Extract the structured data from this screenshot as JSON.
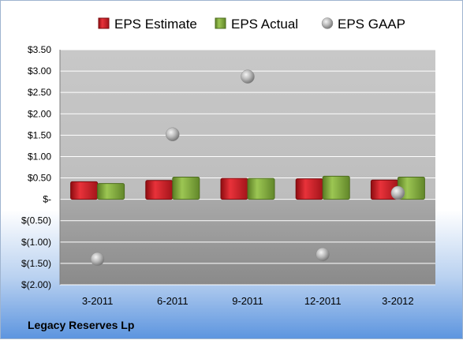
{
  "company": "Legacy Reserves Lp",
  "colors": {
    "estimate": "#d01c24",
    "actual": "#80ab3c",
    "gaap": "#a6a6a6",
    "plot_bg": "#c0c0c0"
  },
  "chart_data": {
    "type": "bar",
    "title": "",
    "xlabel": "",
    "ylabel": "",
    "categories": [
      "3-2011",
      "6-2011",
      "9-2011",
      "12-2011",
      "3-2012"
    ],
    "ylim": [
      -2.0,
      3.5
    ],
    "yticks": [
      3.5,
      3.0,
      2.5,
      2.0,
      1.5,
      1.0,
      0.5,
      0,
      -0.5,
      -1.0,
      -1.5,
      -2.0
    ],
    "ytick_labels": [
      "$3.50",
      "$3.00",
      "$2.50",
      "$2.00",
      "$1.50",
      "$1.00",
      "$0.50",
      "$-",
      "$(0.50)",
      "$(1.00)",
      "$(1.50)",
      "$(2.00)"
    ],
    "grid": true,
    "legend_position": "top",
    "series": [
      {
        "name": "EPS Estimate",
        "kind": "bar",
        "values": [
          0.41,
          0.44,
          0.49,
          0.48,
          0.45
        ]
      },
      {
        "name": "EPS Actual",
        "kind": "bar",
        "values": [
          0.37,
          0.52,
          0.49,
          0.54,
          0.52
        ]
      },
      {
        "name": "EPS GAAP",
        "kind": "scatter",
        "values": [
          -1.4,
          1.52,
          2.87,
          -1.29,
          0.15
        ]
      }
    ]
  }
}
